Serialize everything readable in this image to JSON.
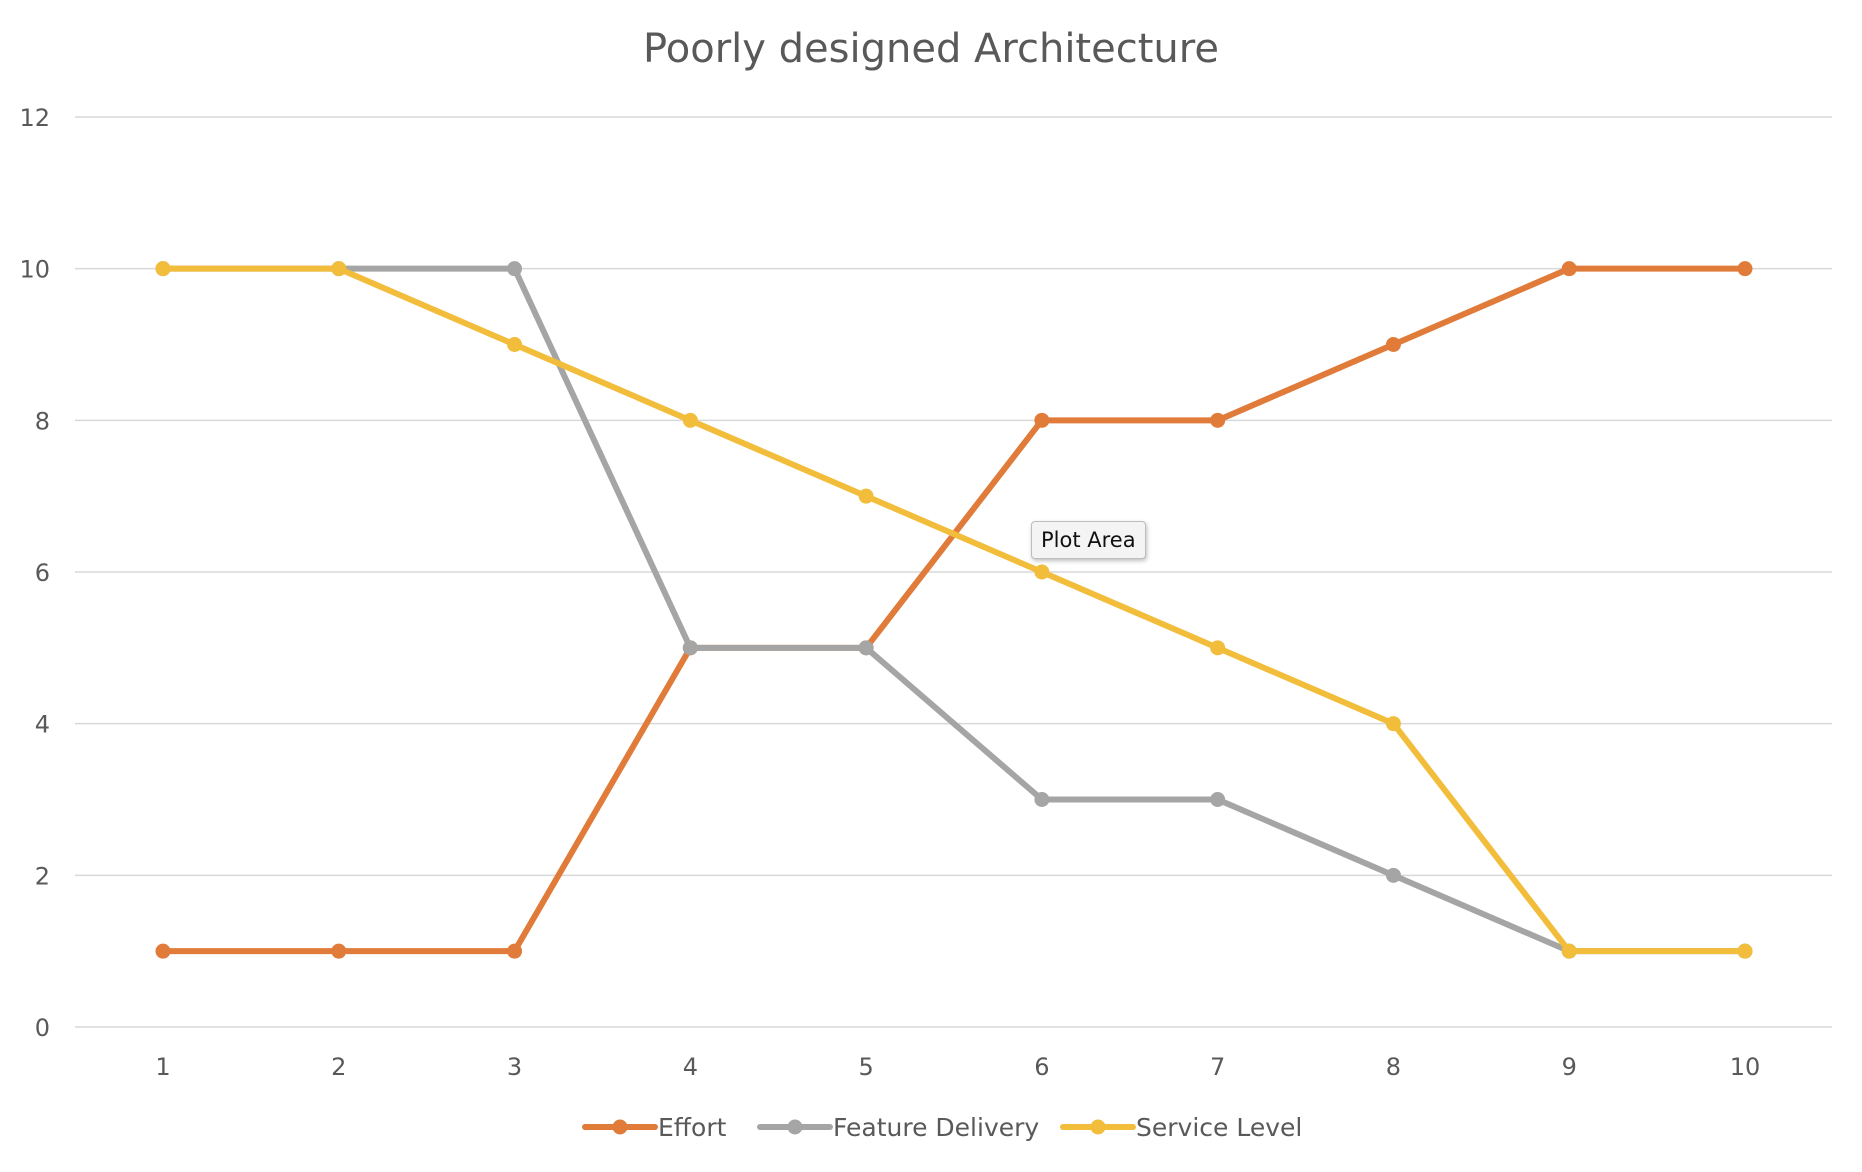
{
  "chart_data": {
    "type": "line",
    "title": "Poorly designed Architecture",
    "xlabel": "",
    "ylabel": "",
    "categories": [
      "1",
      "2",
      "3",
      "4",
      "5",
      "6",
      "7",
      "8",
      "9",
      "10"
    ],
    "ylim": [
      0,
      12
    ],
    "yticks": [
      "0",
      "2",
      "4",
      "6",
      "8",
      "10",
      "12"
    ],
    "grid": true,
    "legend_position": "bottom",
    "series": [
      {
        "name": "Effort",
        "color": "#e07b39",
        "values": [
          1,
          1,
          1,
          5,
          5,
          8,
          8,
          9,
          10,
          10
        ]
      },
      {
        "name": "Feature Delivery",
        "color": "#a5a5a5",
        "values": [
          10,
          10,
          10,
          5,
          5,
          3,
          3,
          2,
          1,
          1
        ]
      },
      {
        "name": "Service Level",
        "color": "#f2bd3a",
        "values": [
          10,
          10,
          9,
          8,
          7,
          6,
          5,
          4,
          1,
          1
        ]
      }
    ]
  },
  "tooltip": {
    "text": "Plot Area"
  }
}
